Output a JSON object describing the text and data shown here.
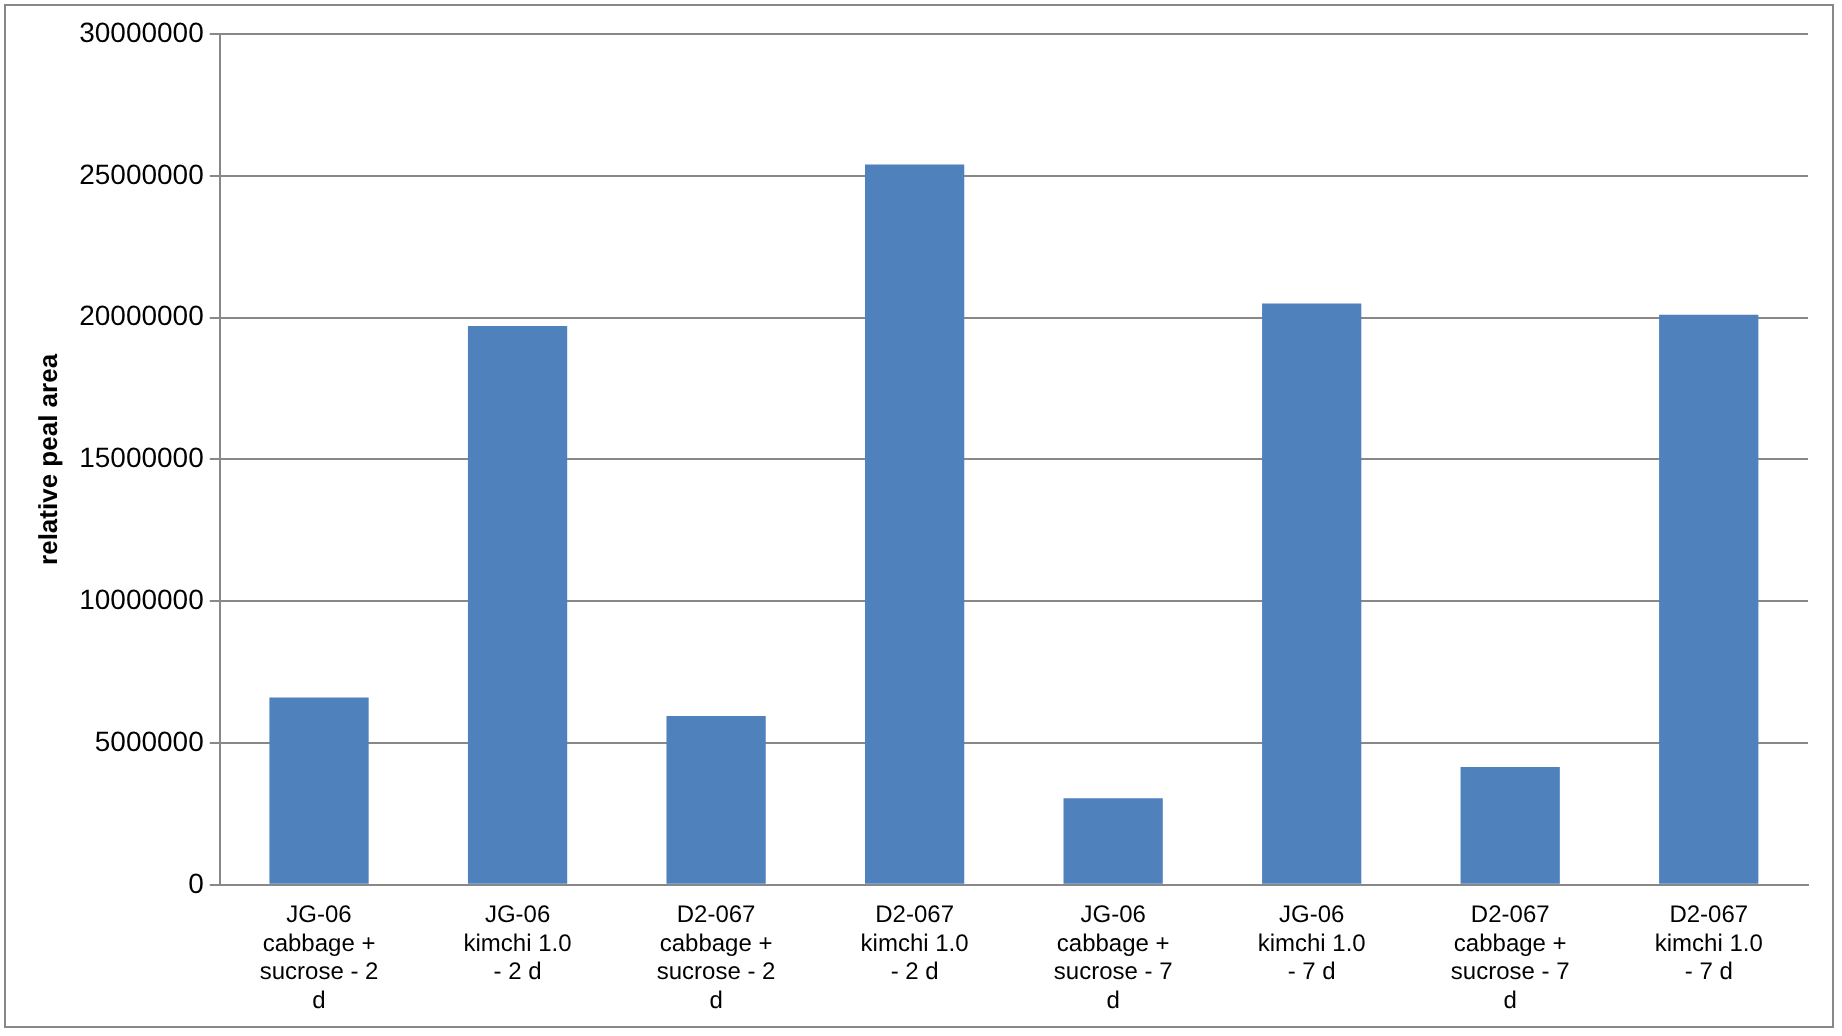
{
  "chart_data": {
    "type": "bar",
    "ylabel": "relative peal area",
    "categories": [
      "JG-06 cabbage + sucrose - 2 d",
      "JG-06 kimchi 1.0 - 2 d",
      "D2-067 cabbage + sucrose - 2 d",
      "D2-067 kimchi 1.0 - 2 d",
      "JG-06 cabbage + sucrose - 7 d",
      "JG-06 kimchi 1.0 - 7 d",
      "D2-067 cabbage + sucrose - 7 d",
      "D2-067 kimchi 1.0 - 7 d"
    ],
    "values": [
      6600000,
      19700000,
      5950000,
      25400000,
      3050000,
      20500000,
      4150000,
      20100000
    ],
    "color": "#4f81bd",
    "ylim": [
      0,
      30000000
    ],
    "yticks": [
      0,
      5000000,
      10000000,
      15000000,
      20000000,
      25000000,
      30000000
    ],
    "grid": "y",
    "legend": false
  }
}
